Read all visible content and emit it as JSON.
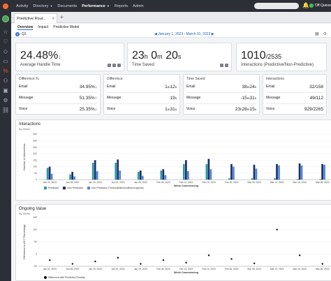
{
  "nav": {
    "items": [
      {
        "label": "Activity",
        "caret": false
      },
      {
        "label": "Directory",
        "caret": true
      },
      {
        "label": "Documents",
        "caret": false
      },
      {
        "label": "Performance",
        "caret": true,
        "active": true
      },
      {
        "label": "Reports",
        "caret": false
      },
      {
        "label": "Admin",
        "caret": false
      }
    ],
    "status_label": "Off Queue"
  },
  "tab": {
    "label": "Predictive Rout...",
    "close": "×",
    "add": "+"
  },
  "subtabs": [
    "Overview",
    "Impact",
    "Predictive Model"
  ],
  "filter": {
    "badge": "Q",
    "period": "Q1",
    "date_range": "January 1, 2023 - March 31, 2023",
    "prev": "◀",
    "next": "▶"
  },
  "kpis": [
    {
      "main": "24.48%",
      "arrow": "↓",
      "label": "Average Handle Time"
    },
    {
      "h": "23",
      "h_unit": "h",
      "m": "0",
      "m_unit": "m",
      "s": "20",
      "s_unit": "s",
      "label": "Time Saved"
    },
    {
      "num": "1010",
      "den": "/2535",
      "label": "Interactions (Predictive/Non-Predictive)"
    }
  ],
  "details": [
    {
      "title": "Difference %",
      "rows": [
        {
          "label": "Email",
          "value": "34.95%",
          "arrow": "↓"
        },
        {
          "label": "Message",
          "value": "51.35%",
          "arrow": "↑"
        },
        {
          "label": "Voice",
          "value": "25.35%",
          "arrow": "↓"
        }
      ]
    },
    {
      "title": "Difference",
      "rows": [
        {
          "label": "Email",
          "a": "1",
          "a_unit": "m",
          "b": "12",
          "b_unit": "s"
        },
        {
          "label": "Message",
          "a": "",
          "a_unit": "",
          "b": "19",
          "b_unit": "s"
        },
        {
          "label": "Voice",
          "a": "1",
          "a_unit": "m",
          "b": "31",
          "b_unit": "s"
        }
      ]
    },
    {
      "title": "Time Saved",
      "rows": [
        {
          "label": "Email",
          "a": "38",
          "a_unit": "m",
          "b": "24",
          "b_unit": "s"
        },
        {
          "label": "Message",
          "a": "-15",
          "a_unit": "m",
          "b": "31",
          "b_unit": "s"
        },
        {
          "label": "Voice",
          "a": "23",
          "a_unit": "h",
          "b": "28",
          "b_unit": "m",
          "c": "15",
          "c_unit": "s"
        }
      ]
    },
    {
      "title": "Interactions",
      "rows": [
        {
          "label": "Email",
          "value": "32/158"
        },
        {
          "label": "Message",
          "value": "49/112"
        },
        {
          "label": "Voice",
          "value": "929/2265"
        }
      ]
    }
  ],
  "colors": {
    "predictive": "#2a9aa8",
    "non_predictive": "#1e2f6b",
    "non_predictive_timeout": "#4f86d9",
    "accent": "#2e6bd8"
  },
  "interactions_chart": {
    "title": "Interactions",
    "subtitle": "By Week",
    "ylabel": "Number of Interactions",
    "xlabel": "Week Commencing"
  },
  "chart_data": [
    {
      "type": "bar",
      "title": "Interactions",
      "subtitle": "By Week",
      "xlabel": "Week Commencing",
      "ylabel": "Number of Interactions",
      "ylim": [
        0,
        350
      ],
      "yticks": [
        0,
        50,
        100,
        150,
        200,
        250,
        300,
        350
      ],
      "categories": [
        "Jan 01, 2023",
        "Jan 08, 2023",
        "Jan 15, 2023",
        "Jan 22, 2023",
        "Jan 29, 2023",
        "Feb 05, 2023",
        "Feb 12, 2023",
        "Feb 19, 2023",
        "Feb 26, 2023",
        "Mar 05, 2023",
        "Mar 12, 2023",
        "Mar 19, 2023",
        "Mar 26, 2023"
      ],
      "tick_labels": [
        "Jan 01, 2023",
        "Jan 08, 2023",
        "Jan 15, 2023",
        "Jan 22, 2023",
        "Jan 29, 2023",
        "Feb 05, 2023",
        "Feb 12, 2023",
        "Feb 19, 2023",
        "Feb 26, 2023",
        "Mar 05, 2023",
        "Mar 12, 2023",
        "Mar 19, 2023",
        "Mar 26, 2023"
      ],
      "series": [
        {
          "name": "Predictive",
          "values": [
            90,
            40,
            130,
            130,
            60,
            70,
            120,
            120,
            10,
            10,
            10,
            5,
            5
          ]
        },
        {
          "name": "Non Predictive",
          "values": [
            100,
            60,
            150,
            155,
            70,
            80,
            150,
            160,
            120,
            115,
            120,
            125,
            120
          ]
        },
        {
          "name": "Non Predictive (Timeout/Idle/Insufficient Agents)",
          "values": [
            45,
            25,
            65,
            70,
            30,
            35,
            65,
            80,
            100,
            85,
            110,
            110,
            115
          ]
        }
      ],
      "legend": [
        "Predictive",
        "Non Predictive",
        "Non Predictive (Timeout/Idle/Insufficient Agents)"
      ],
      "legend_position": "bottom-left"
    },
    {
      "type": "scatter",
      "title": "Ongoing Value",
      "subtitle": "By Week",
      "xlabel": "Week Commencing",
      "ylabel": "Difference in AHT Percentage",
      "ylim": [
        -50,
        150
      ],
      "yticks": [
        -50,
        0,
        50,
        100,
        150
      ],
      "tick_labels": [
        "Jan 01, 2023",
        "Jan 08, 2023",
        "Jan 15, 2023",
        "Jan 22, 2023",
        "Jan 29, 2023",
        "Feb 05, 2023",
        "Feb 12, 2023",
        "Feb 19, 2023",
        "Feb 26, 2023",
        "Mar 05, 2023",
        "Mar 12, 2023",
        "Mar 19, 2023",
        "Mar 26, 2023"
      ],
      "x": [
        "Jan 01, 2023",
        "Jan 08, 2023",
        "Jan 15, 2023",
        "Jan 22, 2023",
        "Jan 29, 2023",
        "Feb 05, 2023",
        "Feb 12, 2023",
        "Feb 19, 2023",
        "Feb 26, 2023",
        "Mar 05, 2023",
        "Mar 12, 2023",
        "Mar 19, 2023",
        "Mar 26, 2023"
      ],
      "y": [
        -25,
        -40,
        -30,
        -15,
        -40,
        -25,
        -35,
        -5,
        -20,
        -38,
        100,
        -5,
        -40
      ],
      "series_name": "Difference with Predictive Routing",
      "legend_position": "bottom-left"
    }
  ]
}
